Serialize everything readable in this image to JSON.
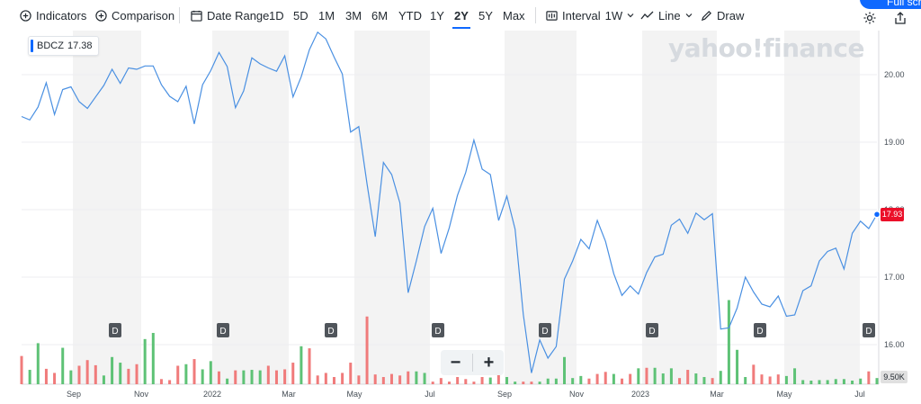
{
  "toolbar": {
    "indicators_label": "Indicators",
    "comparison_label": "Comparison",
    "date_range_label": "Date Range",
    "ranges": [
      "1D",
      "5D",
      "1M",
      "3M",
      "6M",
      "YTD",
      "1Y",
      "2Y",
      "5Y",
      "Max"
    ],
    "active_range": "2Y",
    "interval_label": "Interval",
    "interval_value": "1W",
    "line_label": "Line",
    "draw_label": "Draw",
    "fullscreen_label": "Full scre"
  },
  "legend": {
    "symbol": "BDCZ",
    "value": "17.38",
    "color": "#0f69ff"
  },
  "watermark": "yahoo!finance",
  "last_price_label": "17.93",
  "volume_label": "9.50K",
  "zoom": {
    "minus": "−",
    "plus": "+"
  },
  "colors": {
    "line": "#4a90e2",
    "up": "#5ec276",
    "down": "#f07b7b",
    "band": "#f3f3f3",
    "last": "#eb0f29"
  },
  "chart_data": {
    "type": "line",
    "title": "",
    "ylim": [
      15.5,
      20.7
    ],
    "y_ticks": [
      "20.00",
      "19.00",
      "18.00",
      "17.00",
      "16.00"
    ],
    "x_ticks": [
      "Sep",
      "Nov",
      "2022",
      "Mar",
      "May",
      "Jul",
      "Sep",
      "Nov",
      "2023",
      "Mar",
      "May",
      "Jul"
    ],
    "dividend_marker": "D",
    "dividend_count": 8,
    "series": [
      {
        "values": [
          19.38,
          19.33,
          19.52,
          19.88,
          19.41,
          19.78,
          19.82,
          19.6,
          19.5,
          19.67,
          19.84,
          20.08,
          19.87,
          20.1,
          20.08,
          20.13,
          20.13,
          19.85,
          19.68,
          19.6,
          19.83,
          19.27,
          19.85,
          20.06,
          20.33,
          20.12,
          19.51,
          19.76,
          20.25,
          20.16,
          20.1,
          20.05,
          20.28,
          19.67,
          19.97,
          20.37,
          20.63,
          20.53,
          20.26,
          20.01,
          19.15,
          19.23,
          18.38,
          17.6,
          18.7,
          18.52,
          18.1,
          16.77,
          17.24,
          17.75,
          18.02,
          17.35,
          17.73,
          18.21,
          18.55,
          19.03,
          18.6,
          18.52,
          17.84,
          18.2,
          17.71,
          16.45,
          15.58,
          16.07,
          15.8,
          15.97,
          16.97,
          17.24,
          17.56,
          17.42,
          17.84,
          17.53,
          17.05,
          16.73,
          16.87,
          16.75,
          17.07,
          17.3,
          17.34,
          17.77,
          17.86,
          17.65,
          17.95,
          17.85,
          17.94,
          16.23,
          16.25,
          16.54,
          17.0,
          16.78,
          16.6,
          16.56,
          16.72,
          16.42,
          16.44,
          16.8,
          16.87,
          17.24,
          17.38,
          17.43,
          17.12,
          17.65,
          17.83,
          17.72,
          17.93
        ]
      }
    ],
    "volume": [
      {
        "v": 0.55,
        "up": false
      },
      {
        "v": 0.28,
        "up": true
      },
      {
        "v": 0.8,
        "up": true
      },
      {
        "v": 0.3,
        "up": false
      },
      {
        "v": 0.22,
        "up": false
      },
      {
        "v": 0.71,
        "up": true
      },
      {
        "v": 0.27,
        "up": true
      },
      {
        "v": 0.36,
        "up": false
      },
      {
        "v": 0.47,
        "up": false
      },
      {
        "v": 0.37,
        "up": false
      },
      {
        "v": 0.17,
        "up": true
      },
      {
        "v": 0.53,
        "up": true
      },
      {
        "v": 0.42,
        "up": true
      },
      {
        "v": 0.3,
        "up": false
      },
      {
        "v": 0.39,
        "up": false
      },
      {
        "v": 0.88,
        "up": true
      },
      {
        "v": 1.0,
        "up": true
      },
      {
        "v": 0.1,
        "up": false
      },
      {
        "v": 0.08,
        "up": false
      },
      {
        "v": 0.36,
        "up": false
      },
      {
        "v": 0.39,
        "up": true
      },
      {
        "v": 0.49,
        "up": false
      },
      {
        "v": 0.29,
        "up": true
      },
      {
        "v": 0.45,
        "up": true
      },
      {
        "v": 0.25,
        "up": false
      },
      {
        "v": 0.11,
        "up": true
      },
      {
        "v": 0.27,
        "up": false
      },
      {
        "v": 0.27,
        "up": true
      },
      {
        "v": 0.28,
        "up": true
      },
      {
        "v": 0.27,
        "up": true
      },
      {
        "v": 0.36,
        "up": false
      },
      {
        "v": 0.27,
        "up": false
      },
      {
        "v": 0.29,
        "up": false
      },
      {
        "v": 0.42,
        "up": false
      },
      {
        "v": 0.74,
        "up": true
      },
      {
        "v": 0.7,
        "up": false
      },
      {
        "v": 0.17,
        "up": false
      },
      {
        "v": 0.22,
        "up": false
      },
      {
        "v": 0.14,
        "up": false
      },
      {
        "v": 0.22,
        "up": false
      },
      {
        "v": 0.42,
        "up": false
      },
      {
        "v": 0.17,
        "up": false
      },
      {
        "v": 1.32,
        "up": false
      },
      {
        "v": 0.19,
        "up": false
      },
      {
        "v": 0.14,
        "up": false
      },
      {
        "v": 0.2,
        "up": false
      },
      {
        "v": 0.17,
        "up": false
      },
      {
        "v": 0.25,
        "up": false
      },
      {
        "v": 0.25,
        "up": true
      },
      {
        "v": 0.22,
        "up": true
      },
      {
        "v": 0.05,
        "up": false
      },
      {
        "v": 0.12,
        "up": false
      },
      {
        "v": 0.05,
        "up": false
      },
      {
        "v": 0.14,
        "up": false
      },
      {
        "v": 0.1,
        "up": false
      },
      {
        "v": 0.05,
        "up": false
      },
      {
        "v": 0.14,
        "up": false
      },
      {
        "v": 0.13,
        "up": true
      },
      {
        "v": 0.22,
        "up": false
      },
      {
        "v": 0.14,
        "up": true
      },
      {
        "v": 0.05,
        "up": true
      },
      {
        "v": 0.05,
        "up": false
      },
      {
        "v": 0.05,
        "up": false
      },
      {
        "v": 0.05,
        "up": true
      },
      {
        "v": 0.11,
        "up": true
      },
      {
        "v": 0.11,
        "up": true
      },
      {
        "v": 0.53,
        "up": true
      },
      {
        "v": 0.12,
        "up": true
      },
      {
        "v": 0.16,
        "up": true
      },
      {
        "v": 0.11,
        "up": false
      },
      {
        "v": 0.2,
        "up": false
      },
      {
        "v": 0.24,
        "up": false
      },
      {
        "v": 0.2,
        "up": true
      },
      {
        "v": 0.11,
        "up": false
      },
      {
        "v": 0.2,
        "up": false
      },
      {
        "v": 0.31,
        "up": true
      },
      {
        "v": 0.32,
        "up": false
      },
      {
        "v": 0.32,
        "up": true
      },
      {
        "v": 0.21,
        "up": true
      },
      {
        "v": 0.31,
        "up": true
      },
      {
        "v": 0.12,
        "up": false
      },
      {
        "v": 0.28,
        "up": false
      },
      {
        "v": 0.21,
        "up": true
      },
      {
        "v": 0.14,
        "up": true
      },
      {
        "v": 0.12,
        "up": false
      },
      {
        "v": 0.26,
        "up": true
      },
      {
        "v": 1.64,
        "up": true
      },
      {
        "v": 0.67,
        "up": true
      },
      {
        "v": 0.14,
        "up": true
      },
      {
        "v": 0.38,
        "up": false
      },
      {
        "v": 0.19,
        "up": false
      },
      {
        "v": 0.15,
        "up": false
      },
      {
        "v": 0.19,
        "up": false
      },
      {
        "v": 0.16,
        "up": true
      },
      {
        "v": 0.31,
        "up": true
      },
      {
        "v": 0.08,
        "up": true
      },
      {
        "v": 0.07,
        "up": true
      },
      {
        "v": 0.08,
        "up": true
      },
      {
        "v": 0.08,
        "up": true
      },
      {
        "v": 0.1,
        "up": true
      },
      {
        "v": 0.1,
        "up": true
      },
      {
        "v": 0.07,
        "up": true
      },
      {
        "v": 0.11,
        "up": true
      },
      {
        "v": 0.25,
        "up": false
      },
      {
        "v": 0.12,
        "up": true
      }
    ],
    "shaded_bands": [
      [
        81,
        157
      ],
      [
        236,
        321
      ],
      [
        394,
        478
      ],
      [
        561,
        641
      ],
      [
        714,
        797
      ],
      [
        872,
        956
      ]
    ],
    "dividend_x": [
      128,
      248,
      368,
      487,
      606,
      725,
      845,
      966
    ],
    "x_tick_pos": [
      82,
      157,
      236,
      321,
      394,
      478,
      561,
      641,
      712,
      797,
      872,
      956
    ],
    "y_tick_y": [
      83,
      158,
      233,
      308,
      383
    ]
  }
}
